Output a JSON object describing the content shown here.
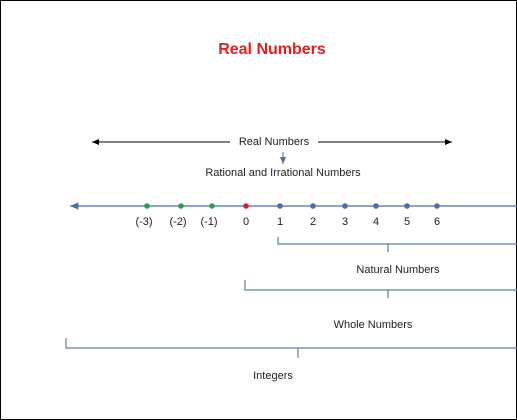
{
  "title": "Real Numbers",
  "real_label": "Real Numbers",
  "sub_label": "Rational and Irrational Numbers",
  "points": [
    {
      "label": "(-3)",
      "color": "#2e9e4f"
    },
    {
      "label": "(-2)",
      "color": "#2e9e4f"
    },
    {
      "label": "(-1)",
      "color": "#2e9e4f"
    },
    {
      "label": "0",
      "color": "#e02020"
    },
    {
      "label": "1",
      "color": "#4a6fa5"
    },
    {
      "label": "2",
      "color": "#4a6fa5"
    },
    {
      "label": "3",
      "color": "#4a6fa5"
    },
    {
      "label": "4",
      "color": "#4a6fa5"
    },
    {
      "label": "5",
      "color": "#4a6fa5"
    },
    {
      "label": "6",
      "color": "#4a6fa5"
    }
  ],
  "brackets": [
    {
      "label": "Natural Numbers"
    },
    {
      "label": "Whole Numbers"
    },
    {
      "label": "Integers"
    }
  ]
}
